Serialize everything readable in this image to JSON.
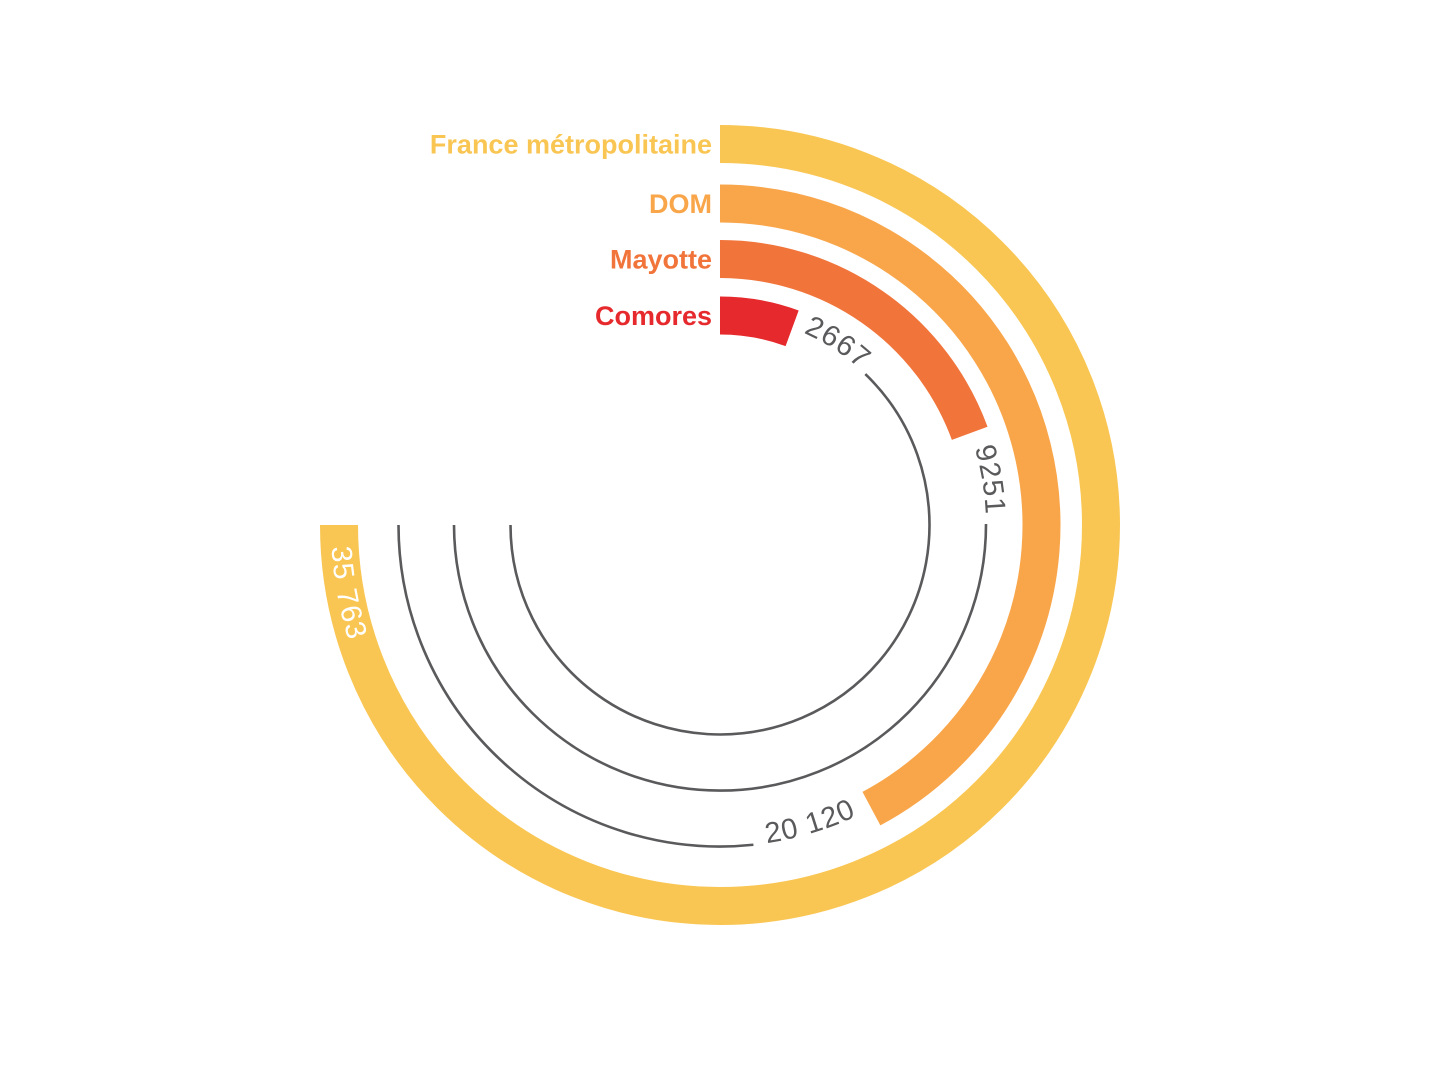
{
  "page": {
    "background_color": "#ffffff"
  },
  "chart_data": {
    "type": "bar",
    "subtype": "radial-bar",
    "title": "",
    "categories": [
      "France métropolitaine",
      "DOM",
      "Mayotte",
      "Comores"
    ],
    "values": [
      35763,
      20120,
      9251,
      2667
    ],
    "value_labels": [
      "35 763",
      "20 120",
      "9251",
      "2667"
    ],
    "series_colors": [
      "#F9C653",
      "#F9A64B",
      "#F1743A",
      "#E6292C"
    ],
    "value_label_colors": [
      "#FFFFFF",
      "#5A5A5C",
      "#5A5A5C",
      "#5A5A5C"
    ],
    "track_color": "#5A5A5C",
    "axis": {
      "min": 0,
      "max": 35763,
      "start_angle_deg": 0,
      "sweep_deg": 270,
      "direction": "clockwise"
    },
    "legend_position": "left",
    "grid": "remainder-track-rings"
  }
}
